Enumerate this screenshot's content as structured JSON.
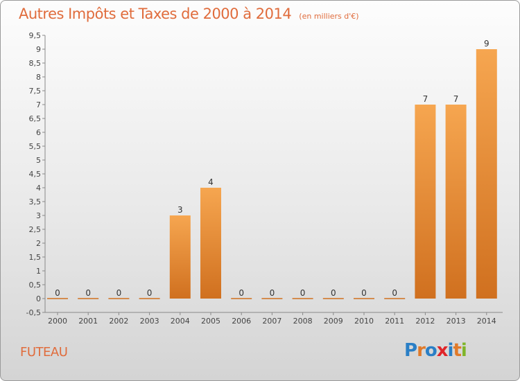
{
  "title": "Autres Impôts et Taxes de 2000 à 2014",
  "subtitle": "(en milliers d'€)",
  "commune": "FUTEAU",
  "logo": {
    "text": "Proxiti",
    "letters": [
      "P",
      "r",
      "o",
      "x",
      "i",
      "t",
      "i"
    ],
    "colors": [
      "#2a7fc6",
      "#e07a2a",
      "#2a7fc6",
      "#e0252a",
      "#2a7fc6",
      "#e07a2a",
      "#7fb52a"
    ]
  },
  "colors": {
    "bar_light": "#f6a650",
    "bar_dark": "#d0701f",
    "title": "#e06c3c",
    "grid": "#aaaaaa"
  },
  "chart_data": {
    "type": "bar",
    "title": "Autres Impôts et Taxes de 2000 à 2014",
    "subtitle": "(en milliers d'€)",
    "categories": [
      "2000",
      "2001",
      "2002",
      "2003",
      "2004",
      "2005",
      "2006",
      "2007",
      "2008",
      "2009",
      "2010",
      "2011",
      "2012",
      "2013",
      "2014"
    ],
    "values": [
      0,
      0,
      0,
      0,
      3,
      4,
      0,
      0,
      0,
      0,
      0,
      0,
      7,
      7,
      9
    ],
    "value_labels": [
      "0",
      "0",
      "0",
      "0",
      "3",
      "4",
      "0",
      "0",
      "0",
      "0",
      "0",
      "0",
      "7",
      "7",
      "9"
    ],
    "ylim": [
      -0.5,
      9.5
    ],
    "yticks": [
      -0.5,
      0,
      0.5,
      1,
      1.5,
      2,
      2.5,
      3,
      3.5,
      4,
      4.5,
      5,
      5.5,
      6,
      6.5,
      7,
      7.5,
      8,
      8.5,
      9,
      9.5
    ],
    "ytick_labels": [
      "-0,5",
      "0",
      "0,5",
      "1",
      "1,5",
      "2",
      "2,5",
      "3",
      "3,5",
      "4",
      "4,5",
      "5",
      "5,5",
      "6",
      "6,5",
      "7",
      "7,5",
      "8",
      "8,5",
      "9",
      "9,5"
    ],
    "grid": false,
    "legend": "none"
  }
}
